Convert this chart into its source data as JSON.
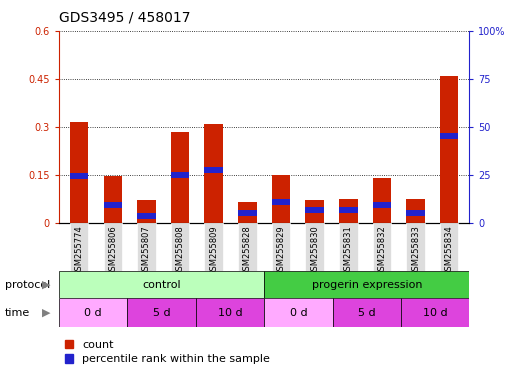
{
  "title": "GDS3495 / 458017",
  "samples": [
    "GSM255774",
    "GSM255806",
    "GSM255807",
    "GSM255808",
    "GSM255809",
    "GSM255828",
    "GSM255829",
    "GSM255830",
    "GSM255831",
    "GSM255832",
    "GSM255833",
    "GSM255834"
  ],
  "red_values": [
    0.315,
    0.145,
    0.07,
    0.285,
    0.31,
    0.065,
    0.15,
    0.07,
    0.075,
    0.14,
    0.075,
    0.46
  ],
  "blue_values": [
    0.145,
    0.055,
    0.02,
    0.15,
    0.165,
    0.03,
    0.065,
    0.04,
    0.04,
    0.055,
    0.03,
    0.27
  ],
  "blue_thickness": 0.018,
  "ylim_left": [
    0,
    0.6
  ],
  "ylim_right": [
    0,
    100
  ],
  "yticks_left": [
    0,
    0.15,
    0.3,
    0.45,
    0.6
  ],
  "yticks_right": [
    0,
    25,
    50,
    75,
    100
  ],
  "ytick_labels_left": [
    "0",
    "0.15",
    "0.3",
    "0.45",
    "0.6"
  ],
  "ytick_labels_right": [
    "0",
    "25",
    "50",
    "75",
    "100%"
  ],
  "bar_color_red": "#cc2200",
  "bar_color_blue": "#2222cc",
  "bar_width": 0.55,
  "title_fontsize": 10,
  "tick_fontsize": 7,
  "label_fontsize": 8,
  "legend_fontsize": 8,
  "background_color": "#ffffff",
  "grid_color": "#000000",
  "protocol_ctrl_color": "#bbffbb",
  "protocol_prog_color": "#44cc44",
  "time_color_light": "#ffaaff",
  "time_color_dark": "#dd44dd",
  "sample_bg_color": "#dddddd"
}
